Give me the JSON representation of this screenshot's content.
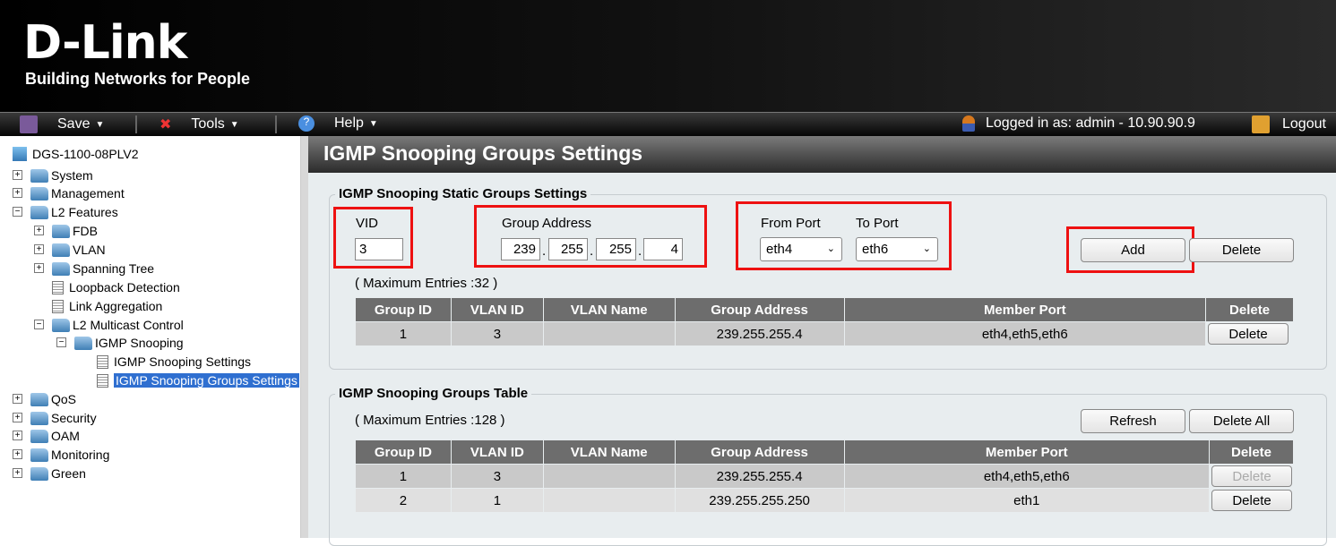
{
  "brand": {
    "logo": "D-Link",
    "tagline": "Building Networks for People"
  },
  "toolbar": {
    "save": "Save",
    "tools": "Tools",
    "help": "Help",
    "logged_in": "Logged in as: admin - 10.90.90.9",
    "logout": "Logout"
  },
  "tree": {
    "root": "DGS-1100-08PLV2",
    "items": [
      {
        "label": "System"
      },
      {
        "label": "Management"
      },
      {
        "label": "L2 Features"
      },
      {
        "label": "FDB"
      },
      {
        "label": "VLAN"
      },
      {
        "label": "Spanning Tree"
      },
      {
        "label": "Loopback Detection"
      },
      {
        "label": "Link Aggregation"
      },
      {
        "label": "L2 Multicast Control"
      },
      {
        "label": "IGMP Snooping"
      },
      {
        "label": "IGMP Snooping Settings"
      },
      {
        "label": "IGMP Snooping Groups Settings"
      },
      {
        "label": "QoS"
      },
      {
        "label": "Security"
      },
      {
        "label": "OAM"
      },
      {
        "label": "Monitoring"
      },
      {
        "label": "Green"
      }
    ]
  },
  "page": {
    "title": "IGMP Snooping Groups Settings"
  },
  "static": {
    "legend": "IGMP Snooping Static Groups Settings",
    "vid_label": "VID",
    "vid": "3",
    "group_label": "Group Address",
    "octets": [
      "239",
      "255",
      "255",
      "4"
    ],
    "from_label": "From Port",
    "from": "eth4",
    "to_label": "To Port",
    "to": "eth6",
    "add": "Add",
    "delete": "Delete",
    "max": "( Maximum Entries :32 )",
    "headers": [
      "Group ID",
      "VLAN ID",
      "VLAN Name",
      "Group Address",
      "Member Port",
      "Delete"
    ],
    "rows": [
      {
        "gid": "1",
        "vid": "3",
        "name": "",
        "addr": "239.255.255.4",
        "ports": "eth4,eth5,eth6",
        "del": "Delete"
      }
    ]
  },
  "groups": {
    "legend": "IGMP Snooping Groups Table",
    "max": "( Maximum Entries :128 )",
    "refresh": "Refresh",
    "delete_all": "Delete All",
    "headers": [
      "Group ID",
      "VLAN ID",
      "VLAN Name",
      "Group Address",
      "Member Port",
      "Delete"
    ],
    "rows": [
      {
        "gid": "1",
        "vid": "3",
        "name": "",
        "addr": "239.255.255.4",
        "ports": "eth4,eth5,eth6",
        "del": "Delete"
      },
      {
        "gid": "2",
        "vid": "1",
        "name": "",
        "addr": "239.255.255.250",
        "ports": "eth1",
        "del": "Delete"
      }
    ]
  }
}
